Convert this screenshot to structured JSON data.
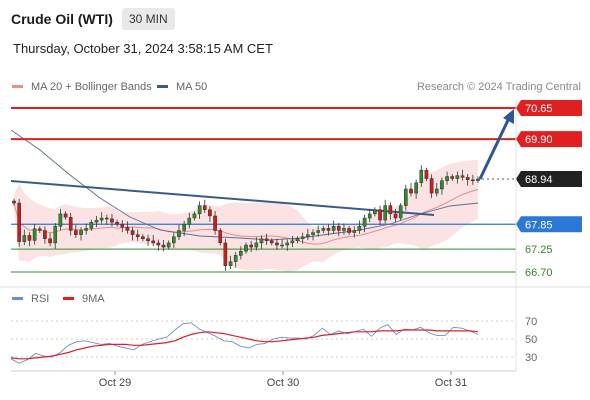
{
  "header": {
    "title": "Crude Oil (WTI)",
    "interval": "30 MIN",
    "datetime": "Thursday, October 31, 2024 3:58:15 AM CET",
    "credit": "Research © 2024 Trading Central"
  },
  "legend": {
    "main": [
      {
        "label": "MA 20 + Bollinger Bands",
        "color": "#f08c8c"
      },
      {
        "label": "MA 50",
        "color": "#3a5a8c"
      }
    ],
    "rsi": [
      {
        "label": "RSI",
        "color": "#6b8fd6"
      },
      {
        "label": "9MA",
        "color": "#e02020"
      }
    ]
  },
  "chart_data": [
    {
      "type": "candlestick",
      "x_ticks": [
        "Oct 29",
        "Oct 30",
        "Oct 31"
      ],
      "price_levels": [
        {
          "label": "70.65",
          "value": 70.65,
          "style": "resistance",
          "color": "#e02020"
        },
        {
          "label": "69.90",
          "value": 69.9,
          "style": "resistance",
          "color": "#e02020"
        },
        {
          "label": "68.94",
          "value": 68.94,
          "style": "last",
          "color": "#222222"
        },
        {
          "label": "67.85",
          "value": 67.85,
          "style": "pivot",
          "color": "#2b78d6"
        },
        {
          "label": "67.25",
          "value": 67.25,
          "style": "support",
          "color": "#2e8b2e"
        },
        {
          "label": "66.70",
          "value": 66.7,
          "style": "support",
          "color": "#2e8b2e"
        }
      ],
      "ylim": [
        66.6,
        70.8
      ],
      "close": [
        68.36,
        67.43,
        67.58,
        67.46,
        67.74,
        67.7,
        67.5,
        67.4,
        67.8,
        68.1,
        68.02,
        67.7,
        67.6,
        67.7,
        67.75,
        67.9,
        67.95,
        68.0,
        67.98,
        67.9,
        67.85,
        67.78,
        67.7,
        67.6,
        67.55,
        67.5,
        67.45,
        67.4,
        67.35,
        67.3,
        67.4,
        67.55,
        67.7,
        67.85,
        68.0,
        68.1,
        68.3,
        68.2,
        68.05,
        67.7,
        67.4,
        66.85,
        66.95,
        67.1,
        67.2,
        67.35,
        67.3,
        67.4,
        67.5,
        67.45,
        67.4,
        67.35,
        67.35,
        67.4,
        67.45,
        67.5,
        67.55,
        67.6,
        67.65,
        67.7,
        67.75,
        67.7,
        67.8,
        67.7,
        67.75,
        67.65,
        67.7,
        67.8,
        68.0,
        68.1,
        68.2,
        67.95,
        68.3,
        68.1,
        68.0,
        68.3,
        68.7,
        68.6,
        68.85,
        69.15,
        68.95,
        68.6,
        68.7,
        68.9,
        69.0,
        68.95,
        69.02,
        68.98,
        68.92,
        68.9,
        68.94
      ]
    },
    {
      "type": "line",
      "title": "RSI",
      "ylim": [
        20,
        80
      ],
      "ticks": [
        70,
        50,
        30
      ],
      "series": [
        {
          "name": "RSI",
          "values": [
            28,
            23,
            27,
            34,
            31,
            30,
            35,
            43,
            47,
            48,
            46,
            44,
            45,
            42,
            40,
            38,
            44,
            47,
            50,
            52,
            60,
            67,
            68,
            61,
            57,
            53,
            48,
            47,
            42,
            40,
            44,
            45,
            50,
            52,
            51,
            51,
            50,
            54,
            62,
            55,
            59,
            56,
            58,
            61,
            53,
            62,
            66,
            55,
            61,
            60,
            63,
            57,
            54,
            54,
            63,
            62,
            59,
            55
          ]
        },
        {
          "name": "9MA",
          "values": [
            29,
            28,
            28,
            29,
            30,
            31,
            33,
            35,
            38,
            40,
            42,
            43,
            44,
            44,
            44,
            43,
            43,
            44,
            45,
            46,
            48,
            52,
            55,
            57,
            58,
            57,
            56,
            54,
            52,
            50,
            48,
            47,
            47,
            48,
            49,
            50,
            51,
            52,
            54,
            55,
            56,
            57,
            58,
            58,
            58,
            59,
            59,
            59,
            60,
            60,
            60,
            60,
            59,
            59,
            59,
            59,
            59,
            58
          ]
        }
      ]
    }
  ]
}
